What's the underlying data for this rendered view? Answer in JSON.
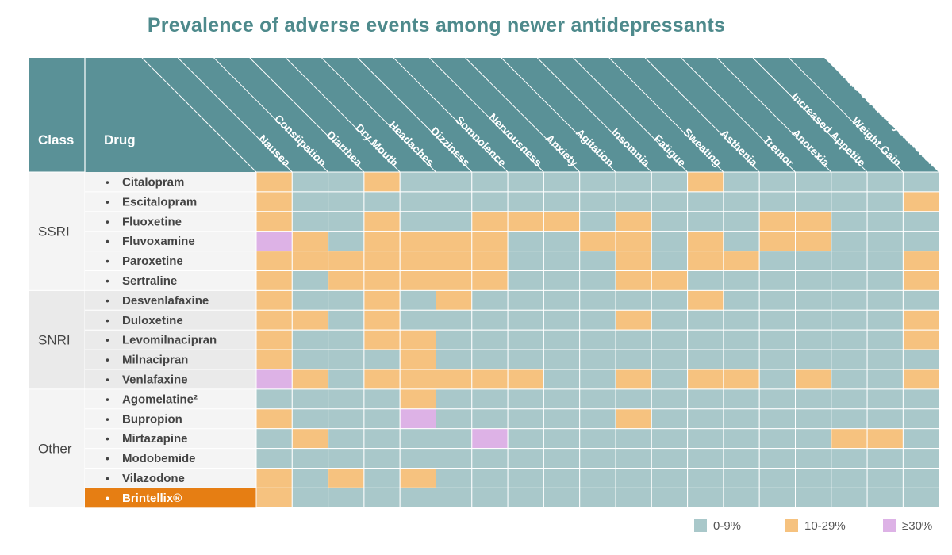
{
  "chart_data": {
    "type": "heatmap",
    "title": "Prevalence of adverse events among newer antidepressants",
    "header": {
      "class_label": "Class",
      "drug_label": "Drug"
    },
    "columns": [
      "Nausea",
      "Constipation",
      "Diarrhea",
      "Dry Mouth",
      "Headaches",
      "Dizziness",
      "Somnolence",
      "Nervousness",
      "Anxiety",
      "Agitation",
      "Insomnia",
      "Fatigue",
      "Sweating",
      "Asthenia",
      "Tremor",
      "Anorexia",
      "Increased Appetite",
      "Weight Gain",
      "Male Sexual Dysfunction"
    ],
    "classes": [
      {
        "name": "SSRI",
        "drugs": [
          "Citalopram",
          "Escitalopram",
          "Fluoxetine",
          "Fluvoxamine",
          "Paroxetine",
          "Sertraline"
        ]
      },
      {
        "name": "SNRI",
        "drugs": [
          "Desvenlafaxine",
          "Duloxetine",
          "Levomilnacipran",
          "Milnacipran",
          "Venlafaxine"
        ]
      },
      {
        "name": "Other",
        "drugs": [
          "Agomelatine²",
          "Bupropion",
          "Mirtazapine",
          "Modobemide",
          "Vilazodone",
          "Brintellix®"
        ]
      }
    ],
    "highlight_drug": "Brintellix®",
    "categories": [
      "0-9%",
      "10-29%",
      "≥30%"
    ],
    "values": [
      [
        1,
        0,
        0,
        1,
        0,
        0,
        0,
        0,
        0,
        0,
        0,
        0,
        1,
        0,
        0,
        0,
        0,
        0,
        0
      ],
      [
        1,
        0,
        0,
        0,
        0,
        0,
        0,
        0,
        0,
        0,
        0,
        0,
        0,
        0,
        0,
        0,
        0,
        0,
        1
      ],
      [
        1,
        0,
        0,
        1,
        0,
        0,
        1,
        1,
        1,
        0,
        1,
        0,
        0,
        0,
        1,
        1,
        0,
        0,
        0
      ],
      [
        2,
        1,
        0,
        1,
        1,
        1,
        1,
        0,
        0,
        1,
        1,
        0,
        1,
        0,
        1,
        1,
        0,
        0,
        0
      ],
      [
        1,
        1,
        1,
        1,
        1,
        1,
        1,
        0,
        0,
        0,
        1,
        0,
        1,
        1,
        0,
        0,
        0,
        0,
        1
      ],
      [
        1,
        0,
        1,
        1,
        1,
        1,
        1,
        0,
        0,
        0,
        1,
        1,
        0,
        0,
        0,
        0,
        0,
        0,
        1
      ],
      [
        1,
        0,
        0,
        1,
        0,
        1,
        0,
        0,
        0,
        0,
        0,
        0,
        1,
        0,
        0,
        0,
        0,
        0,
        0
      ],
      [
        1,
        1,
        0,
        1,
        0,
        0,
        0,
        0,
        0,
        0,
        1,
        0,
        0,
        0,
        0,
        0,
        0,
        0,
        1
      ],
      [
        1,
        0,
        0,
        1,
        1,
        0,
        0,
        0,
        0,
        0,
        0,
        0,
        0,
        0,
        0,
        0,
        0,
        0,
        1
      ],
      [
        1,
        0,
        0,
        0,
        1,
        0,
        0,
        0,
        0,
        0,
        0,
        0,
        0,
        0,
        0,
        0,
        0,
        0,
        0
      ],
      [
        2,
        1,
        0,
        1,
        1,
        1,
        1,
        1,
        0,
        0,
        1,
        0,
        1,
        1,
        0,
        1,
        0,
        0,
        1
      ],
      [
        0,
        0,
        0,
        0,
        1,
        0,
        0,
        0,
        0,
        0,
        0,
        0,
        0,
        0,
        0,
        0,
        0,
        0,
        0
      ],
      [
        1,
        0,
        0,
        0,
        2,
        0,
        0,
        0,
        0,
        0,
        1,
        0,
        0,
        0,
        0,
        0,
        0,
        0,
        0
      ],
      [
        0,
        1,
        0,
        0,
        0,
        0,
        2,
        0,
        0,
        0,
        0,
        0,
        0,
        0,
        0,
        0,
        1,
        1,
        0
      ],
      [
        0,
        0,
        0,
        0,
        0,
        0,
        0,
        0,
        0,
        0,
        0,
        0,
        0,
        0,
        0,
        0,
        0,
        0,
        0
      ],
      [
        1,
        0,
        1,
        0,
        1,
        0,
        0,
        0,
        0,
        0,
        0,
        0,
        0,
        0,
        0,
        0,
        0,
        0,
        0
      ],
      [
        1,
        0,
        0,
        0,
        0,
        0,
        0,
        0,
        0,
        0,
        0,
        0,
        0,
        0,
        0,
        0,
        0,
        0,
        0
      ]
    ],
    "colors": {
      "header": "#5a9197",
      "low": "#a9c8ca",
      "mid": "#f6c27f",
      "high": "#ddb2e6",
      "highlight": "#e67e13",
      "class_band_a": "#eaeaea",
      "class_band_b": "#f4f4f4"
    },
    "legend": [
      {
        "label": "0-9%",
        "color": "#a9c8ca"
      },
      {
        "label": "10-29%",
        "color": "#f6c27f"
      },
      {
        "label": "≥30%",
        "color": "#ddb2e6"
      }
    ]
  }
}
